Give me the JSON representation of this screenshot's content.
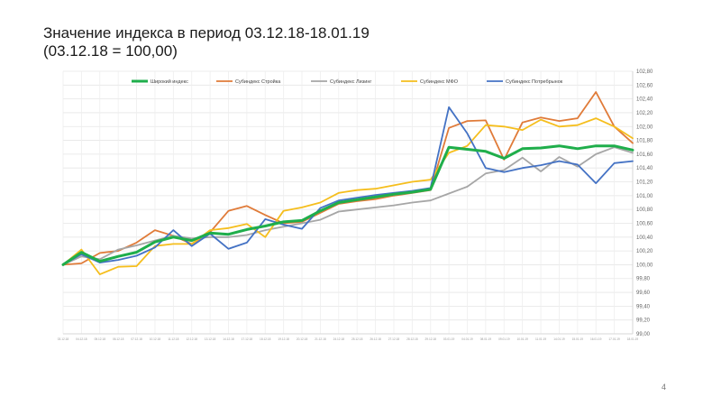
{
  "slide": {
    "title_line1": "Значение индекса в период 03.12.18-18.01.19",
    "title_line2": "(03.12.18  = 100,00)",
    "page_number": "4"
  },
  "chart_data": {
    "type": "line",
    "title": "",
    "ylim": [
      99.0,
      102.8
    ],
    "grid": true,
    "legend_position": "top",
    "y_ticks": [
      "99,00",
      "99,20",
      "99,40",
      "99,60",
      "99,80",
      "100,00",
      "100,20",
      "100,40",
      "100,60",
      "100,80",
      "101,00",
      "101,20",
      "101,40",
      "101,60",
      "101,80",
      "102,00",
      "102,20",
      "102,40",
      "102,60",
      "102,80"
    ],
    "x": [
      "03.12.18",
      "04.12.18",
      "05.12.18",
      "06.12.18",
      "07.12.18",
      "10.12.18",
      "11.12.18",
      "12.12.18",
      "13.12.18",
      "14.12.18",
      "17.12.18",
      "18.12.18",
      "19.12.18",
      "20.12.18",
      "21.12.18",
      "24.12.18",
      "25.12.18",
      "26.12.18",
      "27.12.18",
      "28.12.18",
      "29.12.18",
      "03.01.19",
      "04.01.19",
      "08.01.19",
      "09.01.19",
      "10.01.19",
      "11.01.19",
      "14.01.19",
      "15.01.19",
      "16.01.19",
      "17.01.19",
      "18.01.19"
    ],
    "series": [
      {
        "name": "Широкий индекс",
        "color": "#1fae4b",
        "width": 3,
        "values": [
          100.0,
          100.18,
          100.05,
          100.12,
          100.18,
          100.33,
          100.4,
          100.35,
          100.46,
          100.44,
          100.51,
          100.56,
          100.62,
          100.64,
          100.78,
          100.9,
          100.94,
          100.98,
          101.02,
          101.05,
          101.09,
          101.7,
          101.67,
          101.64,
          101.54,
          101.68,
          101.69,
          101.72,
          101.68,
          101.72,
          101.72,
          101.66
        ]
      },
      {
        "name": "Субиндекс Стройка",
        "color": "#e07b39",
        "width": 1.8,
        "values": [
          100.0,
          100.02,
          100.17,
          100.2,
          100.32,
          100.5,
          100.42,
          100.3,
          100.47,
          100.78,
          100.85,
          100.72,
          100.6,
          100.62,
          100.75,
          100.88,
          100.92,
          100.95,
          101.0,
          101.04,
          101.08,
          101.98,
          102.08,
          102.09,
          101.52,
          102.06,
          102.13,
          102.08,
          102.12,
          102.5,
          102.0,
          101.76
        ]
      },
      {
        "name": "Субиндекс Лизинг",
        "color": "#a6a6a6",
        "width": 1.8,
        "values": [
          100.0,
          100.12,
          100.08,
          100.22,
          100.28,
          100.35,
          100.42,
          100.38,
          100.4,
          100.4,
          100.43,
          100.5,
          100.55,
          100.6,
          100.65,
          100.77,
          100.8,
          100.83,
          100.86,
          100.9,
          100.93,
          101.03,
          101.13,
          101.32,
          101.37,
          101.55,
          101.35,
          101.56,
          101.42,
          101.6,
          101.7,
          101.62
        ]
      },
      {
        "name": "Субиндекс МФО",
        "color": "#f5be1d",
        "width": 1.8,
        "values": [
          100.0,
          100.22,
          99.86,
          99.97,
          99.98,
          100.27,
          100.3,
          100.3,
          100.5,
          100.53,
          100.59,
          100.4,
          100.78,
          100.83,
          100.9,
          101.04,
          101.08,
          101.1,
          101.15,
          101.2,
          101.23,
          101.62,
          101.72,
          102.02,
          102.0,
          101.95,
          102.1,
          102.0,
          102.02,
          102.12,
          102.0,
          101.83
        ]
      },
      {
        "name": "Субиндекс Потребрынок",
        "color": "#4472c4",
        "width": 1.8,
        "values": [
          100.0,
          100.15,
          100.03,
          100.07,
          100.13,
          100.25,
          100.5,
          100.27,
          100.45,
          100.23,
          100.32,
          100.66,
          100.58,
          100.52,
          100.82,
          100.93,
          100.97,
          101.01,
          101.04,
          101.07,
          101.11,
          102.28,
          101.9,
          101.4,
          101.34,
          101.4,
          101.44,
          101.5,
          101.45,
          101.18,
          101.47,
          101.5
        ]
      }
    ]
  }
}
